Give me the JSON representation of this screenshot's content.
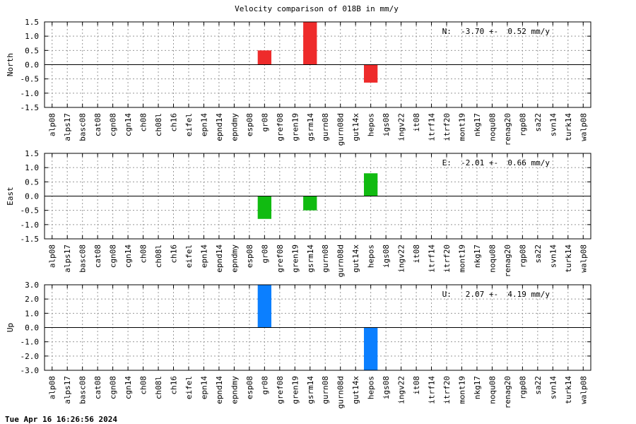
{
  "title": "Velocity comparison of 018B in mm/y",
  "timestamp": "Tue Apr 16 16:26:56 2024",
  "colors": {
    "north": "#ee2b2b",
    "east": "#11bb11",
    "up": "#0b7fff",
    "grid": "#999999",
    "axis": "#000000"
  },
  "chart_data": [
    {
      "type": "bar",
      "ylabel": "North",
      "annotation": "N:  -3.70 +-  0.52 mm/y",
      "ylim": [
        -1.5,
        1.5
      ],
      "yticks": [
        "1.5",
        "1.0",
        "0.5",
        "0.0",
        "-0.5",
        "-1.0",
        "-1.5"
      ],
      "yticks_values": [
        1.5,
        1.0,
        0.5,
        0.0,
        -0.5,
        -1.0,
        -1.5
      ],
      "grid": true,
      "categories": [
        "alp08",
        "alps17",
        "basc08",
        "cat08",
        "cgn08",
        "cgn14",
        "ch08",
        "ch08l",
        "ch16",
        "eifel",
        "epn14",
        "epnd14",
        "epndmy",
        "esp08",
        "gr08",
        "gref08",
        "gren19",
        "gsrm14",
        "gurn08",
        "gurn08d",
        "gut14x",
        "hepos",
        "igs08",
        "ingv22",
        "it08",
        "itrf14",
        "itrf20",
        "mont19",
        "nkg17",
        "noqu08",
        "renag20",
        "rgp08",
        "sa22",
        "svn14",
        "turk14",
        "walp08"
      ],
      "values": [
        0,
        0,
        0,
        0,
        0,
        0,
        0,
        0,
        0,
        0,
        0,
        0,
        0,
        0,
        0.5,
        0,
        0,
        1.5,
        0,
        0,
        0,
        -0.63,
        0,
        0,
        0,
        0,
        0,
        0,
        0,
        0,
        0,
        0,
        0,
        0,
        0,
        0
      ],
      "color": "#ee2b2b"
    },
    {
      "type": "bar",
      "ylabel": "East",
      "annotation": "E:  -2.01 +-  0.66 mm/y",
      "ylim": [
        -1.5,
        1.5
      ],
      "yticks": [
        "1.5",
        "1.0",
        "0.5",
        "0.0",
        "-0.5",
        "-1.0",
        "-1.5"
      ],
      "yticks_values": [
        1.5,
        1.0,
        0.5,
        0.0,
        -0.5,
        -1.0,
        -1.5
      ],
      "grid": true,
      "categories": [
        "alp08",
        "alps17",
        "basc08",
        "cat08",
        "cgn08",
        "cgn14",
        "ch08",
        "ch08l",
        "ch16",
        "eifel",
        "epn14",
        "epnd14",
        "epndmy",
        "esp08",
        "gr08",
        "gref08",
        "gren19",
        "gsrm14",
        "gurn08",
        "gurn08d",
        "gut14x",
        "hepos",
        "igs08",
        "ingv22",
        "it08",
        "itrf14",
        "itrf20",
        "mont19",
        "nkg17",
        "noqu08",
        "renag20",
        "rgp08",
        "sa22",
        "svn14",
        "turk14",
        "walp08"
      ],
      "values": [
        0,
        0,
        0,
        0,
        0,
        0,
        0,
        0,
        0,
        0,
        0,
        0,
        0,
        0,
        -0.8,
        0,
        0,
        -0.5,
        0,
        0,
        0,
        0.8,
        0,
        0,
        0,
        0,
        0,
        0,
        0,
        0,
        0,
        0,
        0,
        0,
        0,
        0
      ],
      "color": "#11bb11"
    },
    {
      "type": "bar",
      "ylabel": "Up",
      "annotation": "U:   2.07 +-  4.19 mm/y",
      "ylim": [
        -3.0,
        3.0
      ],
      "yticks": [
        "3.0",
        "2.0",
        "1.0",
        "0.0",
        "-1.0",
        "-2.0",
        "-3.0"
      ],
      "yticks_values": [
        3.0,
        2.0,
        1.0,
        0.0,
        -1.0,
        -2.0,
        -3.0
      ],
      "grid": true,
      "categories": [
        "alp08",
        "alps17",
        "basc08",
        "cat08",
        "cgn08",
        "cgn14",
        "ch08",
        "ch08l",
        "ch16",
        "eifel",
        "epn14",
        "epnd14",
        "epndmy",
        "esp08",
        "gr08",
        "gref08",
        "gren19",
        "gsrm14",
        "gurn08",
        "gurn08d",
        "gut14x",
        "hepos",
        "igs08",
        "ingv22",
        "it08",
        "itrf14",
        "itrf20",
        "mont19",
        "nkg17",
        "noqu08",
        "renag20",
        "rgp08",
        "sa22",
        "svn14",
        "turk14",
        "walp08"
      ],
      "values": [
        0,
        0,
        0,
        0,
        0,
        0,
        0,
        0,
        0,
        0,
        0,
        0,
        0,
        0,
        3.0,
        0,
        0,
        0,
        0,
        0,
        0,
        -3.0,
        0,
        0,
        0,
        0,
        0,
        0,
        0,
        0,
        0,
        0,
        0,
        0,
        0,
        0
      ],
      "color": "#0b7fff"
    }
  ]
}
